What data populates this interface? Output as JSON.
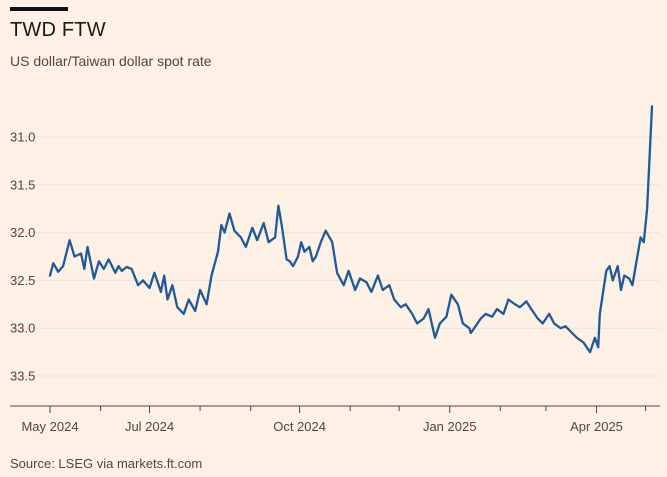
{
  "header": {
    "title": "TWD FTW",
    "subtitle": "US dollar/Taiwan dollar spot rate"
  },
  "footer": {
    "source": "Source: LSEG via markets.ft.com"
  },
  "colors": {
    "background": "#fdf1e5",
    "line": "#1f5a99",
    "grid": "#efe3d6",
    "axis": "#4d4845"
  },
  "chart_data": {
    "type": "line",
    "title": "TWD FTW",
    "subtitle": "US dollar/Taiwan dollar spot rate",
    "xlabel": "",
    "ylabel": "",
    "y_inverted": true,
    "ylim": [
      30.75,
      33.75
    ],
    "y_ticks": [
      31.0,
      31.5,
      32.0,
      32.5,
      33.0,
      33.5
    ],
    "y_tick_labels": [
      "31.0",
      "31.5",
      "32.0",
      "32.5",
      "33.0",
      "33.5"
    ],
    "xlim": [
      "2024-05-01",
      "2025-05-05"
    ],
    "x_ticks": [
      "2024-05-01",
      "2024-07-01",
      "2024-10-01",
      "2025-01-01",
      "2025-04-01"
    ],
    "x_tick_labels": [
      "May 2024",
      "Jul 2024",
      "Oct 2024",
      "Jan 2025",
      "Apr 2025"
    ],
    "grid": true,
    "legend": "none",
    "series": [
      {
        "x": [
          "2024-05-01",
          "2024-05-03",
          "2024-05-06",
          "2024-05-09",
          "2024-05-13",
          "2024-05-16",
          "2024-05-20",
          "2024-05-22",
          "2024-05-24",
          "2024-05-28",
          "2024-05-31",
          "2024-06-03",
          "2024-06-06",
          "2024-06-10",
          "2024-06-12",
          "2024-06-14",
          "2024-06-17",
          "2024-06-20",
          "2024-06-24",
          "2024-06-27",
          "2024-07-01",
          "2024-07-04",
          "2024-07-08",
          "2024-07-10",
          "2024-07-12",
          "2024-07-15",
          "2024-07-18",
          "2024-07-22",
          "2024-07-25",
          "2024-07-29",
          "2024-08-01",
          "2024-08-05",
          "2024-08-08",
          "2024-08-12",
          "2024-08-14",
          "2024-08-16",
          "2024-08-19",
          "2024-08-22",
          "2024-08-26",
          "2024-08-29",
          "2024-09-02",
          "2024-09-05",
          "2024-09-09",
          "2024-09-12",
          "2024-09-16",
          "2024-09-18",
          "2024-09-20",
          "2024-09-23",
          "2024-09-25",
          "2024-09-27",
          "2024-09-30",
          "2024-10-02",
          "2024-10-04",
          "2024-10-07",
          "2024-10-09",
          "2024-10-11",
          "2024-10-14",
          "2024-10-17",
          "2024-10-21",
          "2024-10-24",
          "2024-10-28",
          "2024-10-31",
          "2024-11-04",
          "2024-11-07",
          "2024-11-11",
          "2024-11-14",
          "2024-11-18",
          "2024-11-21",
          "2024-11-25",
          "2024-11-28",
          "2024-12-02",
          "2024-12-05",
          "2024-12-09",
          "2024-12-12",
          "2024-12-16",
          "2024-12-19",
          "2024-12-23",
          "2024-12-26",
          "2024-12-30",
          "2025-01-02",
          "2025-01-06",
          "2025-01-09",
          "2025-01-13",
          "2025-01-14",
          "2025-01-16",
          "2025-01-20",
          "2025-01-23",
          "2025-01-27",
          "2025-01-30",
          "2025-02-03",
          "2025-02-06",
          "2025-02-10",
          "2025-02-13",
          "2025-02-17",
          "2025-02-20",
          "2025-02-24",
          "2025-02-27",
          "2025-03-03",
          "2025-03-06",
          "2025-03-10",
          "2025-03-13",
          "2025-03-17",
          "2025-03-20",
          "2025-03-24",
          "2025-03-26",
          "2025-03-28",
          "2025-03-31",
          "2025-04-02",
          "2025-04-03",
          "2025-04-07",
          "2025-04-09",
          "2025-04-11",
          "2025-04-14",
          "2025-04-16",
          "2025-04-18",
          "2025-04-21",
          "2025-04-23",
          "2025-04-25",
          "2025-04-28",
          "2025-04-30",
          "2025-05-02",
          "2025-05-05"
        ],
        "values": [
          32.45,
          32.32,
          32.41,
          32.35,
          32.08,
          32.25,
          32.22,
          32.38,
          32.15,
          32.48,
          32.3,
          32.38,
          32.28,
          32.42,
          32.35,
          32.4,
          32.36,
          32.38,
          32.55,
          32.5,
          32.58,
          32.42,
          32.62,
          32.45,
          32.7,
          32.55,
          32.78,
          32.85,
          32.7,
          32.82,
          32.6,
          32.75,
          32.45,
          32.2,
          31.92,
          32.0,
          31.8,
          31.98,
          32.05,
          32.15,
          31.95,
          32.08,
          31.9,
          32.1,
          32.05,
          31.72,
          31.92,
          32.28,
          32.3,
          32.35,
          32.25,
          32.1,
          32.2,
          32.15,
          32.3,
          32.25,
          32.1,
          31.98,
          32.1,
          32.42,
          32.55,
          32.4,
          32.6,
          32.48,
          32.52,
          32.62,
          32.45,
          32.6,
          32.55,
          32.7,
          32.78,
          32.75,
          32.85,
          32.95,
          32.9,
          32.8,
          33.1,
          32.95,
          32.88,
          32.65,
          32.75,
          32.95,
          33.0,
          33.05,
          33.0,
          32.9,
          32.85,
          32.88,
          32.8,
          32.85,
          32.7,
          32.75,
          32.78,
          32.72,
          32.8,
          32.9,
          32.95,
          32.85,
          32.95,
          33.0,
          32.98,
          33.05,
          33.1,
          33.15,
          33.2,
          33.25,
          33.1,
          33.2,
          32.85,
          32.4,
          32.35,
          32.5,
          32.35,
          32.6,
          32.45,
          32.48,
          32.55,
          32.35,
          32.05,
          32.1,
          31.75,
          30.68
        ]
      }
    ]
  }
}
